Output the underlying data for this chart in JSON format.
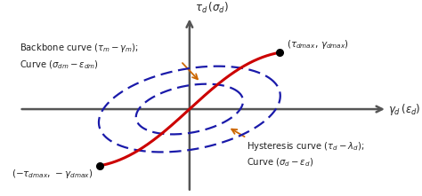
{
  "backbone_color": "#cc0000",
  "hysteresis_color": "#1a1aaa",
  "arrow_color": "#cc6600",
  "axis_color": "#555555",
  "text_color": "#222222",
  "background_color": "#ffffff",
  "xlim": [
    -1.6,
    1.85
  ],
  "ylim": [
    -1.35,
    1.5
  ],
  "xmax_pt": 0.72,
  "ymax_pt": 0.85
}
